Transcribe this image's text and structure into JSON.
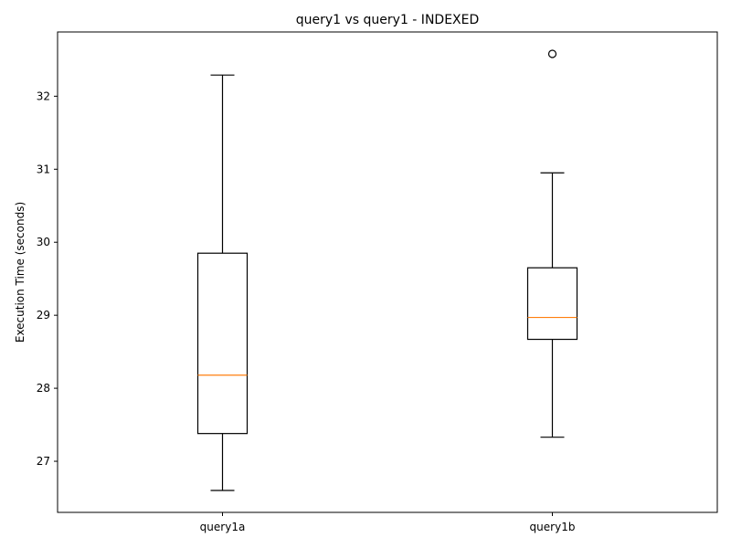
{
  "chart_data": {
    "type": "boxplot",
    "title": "query1 vs query1 - INDEXED",
    "xlabel": "",
    "ylabel": "Execution Time (seconds)",
    "ylim": [
      26.3,
      32.88
    ],
    "yticks": [
      27,
      28,
      29,
      30,
      31,
      32
    ],
    "categories": [
      "query1a",
      "query1b"
    ],
    "boxes": [
      {
        "label": "query1a",
        "whisker_low": 26.6,
        "q1": 27.38,
        "median": 28.18,
        "q3": 29.85,
        "whisker_high": 32.29,
        "outliers": []
      },
      {
        "label": "query1b",
        "whisker_low": 27.33,
        "q1": 28.67,
        "median": 28.97,
        "q3": 29.65,
        "whisker_high": 30.95,
        "outliers": [
          32.58
        ]
      }
    ],
    "grid": false,
    "colors": {
      "box": "#000000",
      "median": "#ff7f0e",
      "whisker": "#000000",
      "outlier": "#000000"
    }
  }
}
